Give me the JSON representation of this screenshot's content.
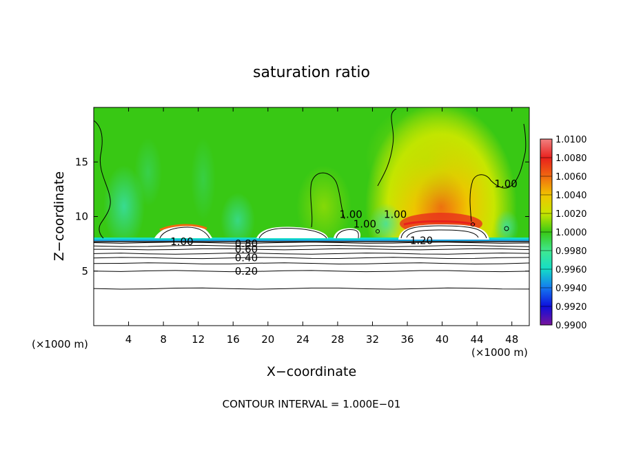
{
  "chart_data": {
    "type": "heatmap",
    "title": "saturation ratio",
    "xlabel": "X−coordinate",
    "ylabel": "Z−coordinate",
    "x_unit_left": "(×1000 m)",
    "x_unit_right": "(×1000 m)",
    "footer": "CONTOUR INTERVAL = 1.000E−01",
    "xlim": [
      0,
      50
    ],
    "ylim": [
      0,
      20
    ],
    "x_ticks": [
      4,
      8,
      12,
      16,
      20,
      24,
      28,
      32,
      36,
      40,
      44,
      48
    ],
    "y_ticks": [
      5,
      10,
      15
    ],
    "colorbar": {
      "levels": [
        "1.0100",
        "1.0080",
        "1.0060",
        "1.0040",
        "1.0020",
        "1.0000",
        "0.9980",
        "0.9960",
        "0.9940",
        "0.9920",
        "0.9900"
      ],
      "colors": [
        "#f08080",
        "#e8201c",
        "#f06a10",
        "#f0c400",
        "#c8e600",
        "#38c814",
        "#40e890",
        "#14dcc8",
        "#1478f0",
        "#0e0edc",
        "#7a149a"
      ]
    },
    "background_level": 1.0,
    "cloud_base_z": 8,
    "contour_labels": [
      {
        "text": "0.20",
        "x": 16.2,
        "z": 5.0
      },
      {
        "text": "0.40",
        "x": 16.2,
        "z": 6.2
      },
      {
        "text": "0.60",
        "x": 16.2,
        "z": 7.0
      },
      {
        "text": "0.80",
        "x": 16.2,
        "z": 7.5
      },
      {
        "text": "1.00",
        "x": 8.8,
        "z": 7.7
      },
      {
        "text": "1.00",
        "x": 28.2,
        "z": 10.2
      },
      {
        "text": "1.00",
        "x": 29.8,
        "z": 9.3
      },
      {
        "text": "1.00",
        "x": 33.3,
        "z": 10.2
      },
      {
        "text": "1.00",
        "x": 46.0,
        "z": 13.0
      },
      {
        "text": "1.20",
        "x": 36.3,
        "z": 7.8
      }
    ],
    "stable_contour_levels_z": [
      3.4,
      5.0,
      5.7,
      6.2,
      6.6,
      7.0,
      7.3,
      7.6
    ]
  }
}
